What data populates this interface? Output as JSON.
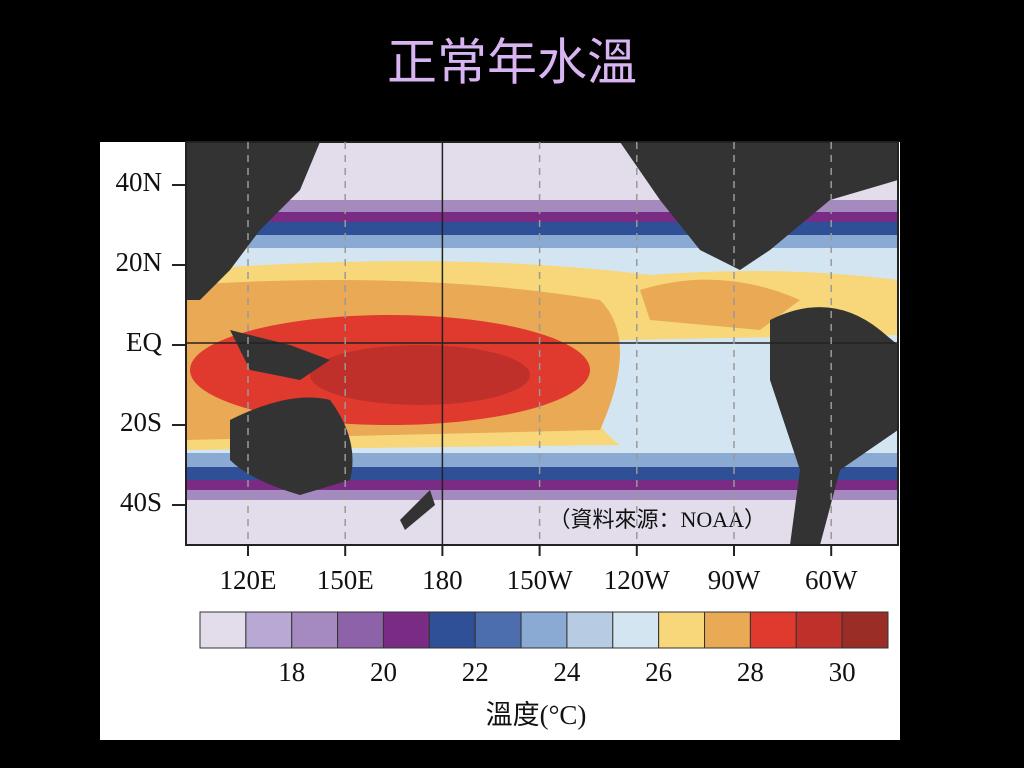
{
  "title": "正常年水溫",
  "map": {
    "lat_labels": [
      "40N",
      "20N",
      "EQ",
      "20S",
      "40S"
    ],
    "lon_labels": [
      "120E",
      "150E",
      "180",
      "150W",
      "120W",
      "90W",
      "60W"
    ],
    "source": "（資料來源：NOAA）"
  },
  "colorbar": {
    "colors": [
      "#e3dcea",
      "#b8a8d4",
      "#a58ac0",
      "#8e62a8",
      "#7a2b84",
      "#2f4f96",
      "#4d6eae",
      "#8aa9d3",
      "#b7cbe3",
      "#d4e5f2",
      "#f7d77a",
      "#e9a955",
      "#e0392e",
      "#c0302a",
      "#9a2e26"
    ],
    "ticks": [
      18,
      20,
      22,
      24,
      26,
      28,
      30
    ],
    "label": "溫度(°C)"
  }
}
